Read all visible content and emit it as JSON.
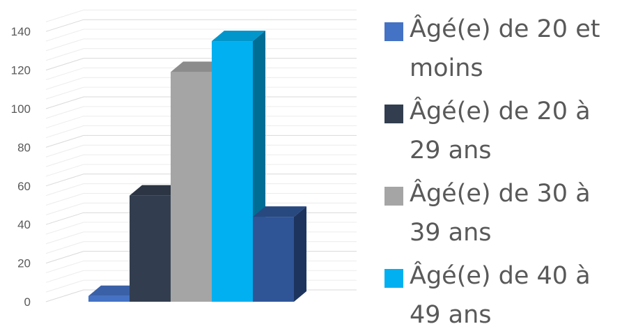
{
  "chart_data": {
    "type": "bar",
    "style": "3d-clustered-column",
    "yticks": [
      "0",
      "20",
      "40",
      "60",
      "80",
      "100",
      "120",
      "140"
    ],
    "ylim": [
      0,
      150
    ],
    "grid": true,
    "legend_position": "right",
    "series": [
      {
        "name": "Âgé(e) de 20 et moins",
        "value": 3,
        "color": "#4472C4"
      },
      {
        "name": "Âgé(e) de 20 à 29 ans",
        "value": 55,
        "color": "#323E4F"
      },
      {
        "name": "Âgé(e) de 30 à 39 ans",
        "value": 119,
        "color": "#A5A5A5"
      },
      {
        "name": "Âgé(e) de 40 à 49 ans",
        "value": 135,
        "color": "#00B0F0"
      },
      {
        "name": "",
        "value": 44,
        "color": "#2F5597"
      }
    ]
  }
}
